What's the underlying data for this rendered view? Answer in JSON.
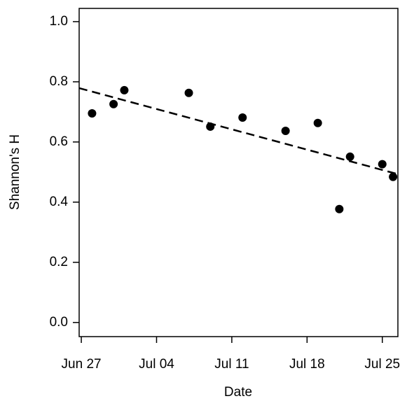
{
  "chart_data": {
    "type": "scatter",
    "x_label": "Date",
    "y_label": "Shannon's H",
    "x": [
      1,
      3,
      4,
      10,
      12,
      15,
      19,
      22,
      24,
      25,
      28,
      29
    ],
    "values": [
      0.695,
      0.726,
      0.772,
      0.763,
      0.651,
      0.681,
      0.637,
      0.663,
      0.377,
      0.551,
      0.526,
      0.484
    ],
    "color": "#000000",
    "trend_line": {
      "x": [
        -0.2,
        29.45
      ],
      "y": [
        0.779,
        0.493
      ],
      "color": "#000000",
      "dashed": true
    },
    "xlim": [
      -0.2,
      29.45
    ],
    "xticks": [
      {
        "value": 0,
        "label": "Jun 27"
      },
      {
        "value": 7,
        "label": "Jul 04"
      },
      {
        "value": 14,
        "label": "Jul 11"
      },
      {
        "value": 21,
        "label": "Jul 18"
      },
      {
        "value": 28,
        "label": "Jul 25"
      }
    ],
    "ylim": [
      -0.047,
      1.044
    ],
    "yticks": [
      {
        "value": 0,
        "label": "0.0"
      },
      0.2,
      0.4,
      0.6,
      0.8,
      {
        "value": 1,
        "label": "1.0"
      }
    ],
    "grid": false
  }
}
